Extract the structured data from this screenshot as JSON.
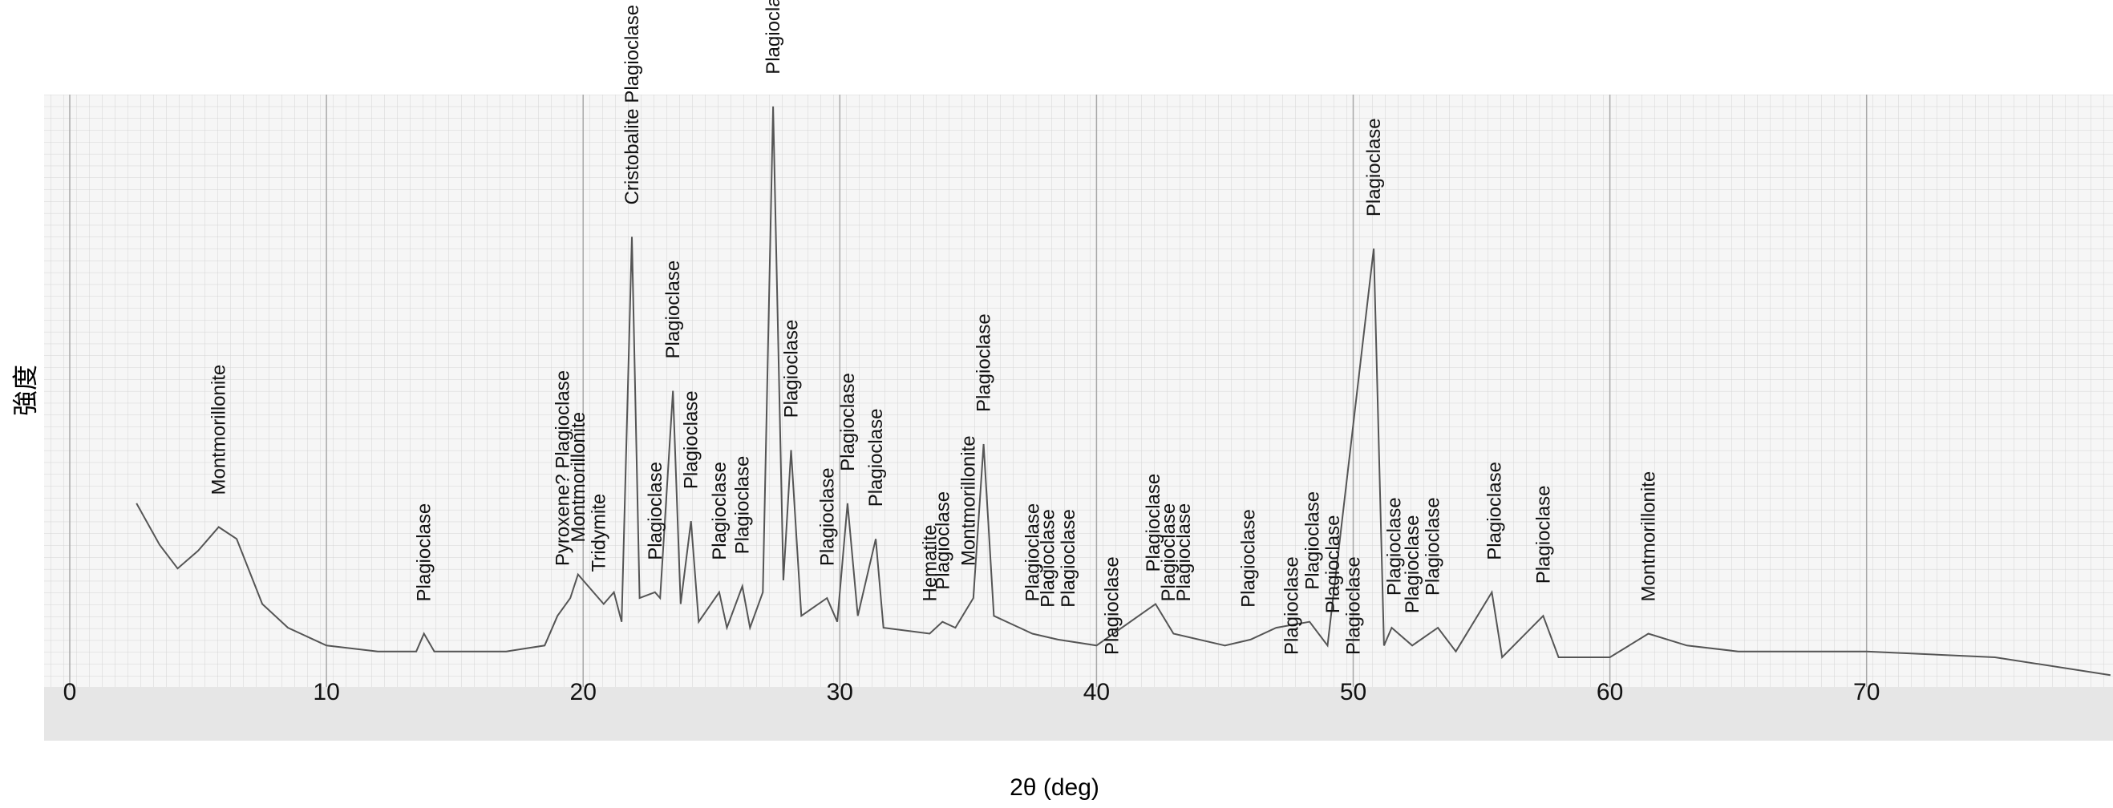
{
  "chart_data": {
    "type": "line",
    "xlabel": "2θ (deg)",
    "ylabel": "強度",
    "color": "#555555",
    "xlim": [
      -1,
      79.6
    ],
    "ylim": [
      0,
      100
    ],
    "xticks": [
      0,
      10,
      20,
      30,
      40,
      50,
      60,
      70
    ],
    "x": [
      2.6,
      3.5,
      4.2,
      5,
      5.8,
      6.5,
      7.5,
      8.5,
      10,
      12,
      13.5,
      13.8,
      14.2,
      17,
      18.5,
      19,
      19.5,
      19.8,
      20.2,
      20.8,
      21.2,
      21.5,
      21.9,
      22.2,
      22.8,
      23,
      23.5,
      23.8,
      24.2,
      24.5,
      25.3,
      25.6,
      26.2,
      26.5,
      27,
      27.4,
      27.8,
      28.1,
      28.5,
      29.5,
      29.9,
      30.3,
      30.7,
      31.4,
      31.7,
      33.5,
      34,
      34.5,
      35.2,
      35.6,
      36,
      37.5,
      38.5,
      40,
      42.3,
      43,
      45,
      46,
      47,
      48.3,
      49,
      50.8,
      51.2,
      51.5,
      52.3,
      53.3,
      54,
      55.4,
      55.8,
      57.4,
      58,
      60,
      61.5,
      63,
      65,
      70,
      75,
      79.5
    ],
    "values": [
      31,
      24,
      20,
      23,
      27,
      25,
      14,
      10,
      7,
      6,
      6,
      9,
      6,
      6,
      7,
      12,
      15,
      19,
      17,
      14,
      16,
      11,
      76,
      15,
      16,
      15,
      50,
      14,
      28,
      11,
      16,
      10,
      17,
      10,
      16,
      98,
      18,
      40,
      12,
      15,
      11,
      31,
      12,
      25,
      10,
      9,
      11,
      10,
      15,
      41,
      12,
      9,
      8,
      7,
      14,
      9,
      7,
      8,
      10,
      11,
      7,
      74,
      7,
      10,
      7,
      10,
      6,
      16,
      5,
      12,
      5,
      5,
      9,
      7,
      6,
      6,
      5,
      2
    ],
    "annotations": [
      {
        "text": "Montmorillonite",
        "x": 5.8
      },
      {
        "text": "Plagioclase",
        "x": 13.8
      },
      {
        "text": "Pyroxene? Plagioclase",
        "x": 19.2
      },
      {
        "text": "Montmorillonite",
        "x": 19.8
      },
      {
        "text": "Tridymite",
        "x": 20.6
      },
      {
        "text": "Cristobalite Plagioclase",
        "x": 21.9
      },
      {
        "text": "Plagioclase",
        "x": 22.8
      },
      {
        "text": "Plagioclase",
        "x": 23.5
      },
      {
        "text": "Plagioclase",
        "x": 24.2
      },
      {
        "text": "Plagioclase",
        "x": 25.3
      },
      {
        "text": "Plagioclase",
        "x": 26.2
      },
      {
        "text": "Plagioclase",
        "x": 27.4
      },
      {
        "text": "Plagioclase",
        "x": 28.1
      },
      {
        "text": "Plagioclase",
        "x": 29.5
      },
      {
        "text": "Plagioclase",
        "x": 30.3
      },
      {
        "text": "Plagioclase",
        "x": 31.4
      },
      {
        "text": "Hematite",
        "x": 33.5
      },
      {
        "text": "Plagioclase",
        "x": 34
      },
      {
        "text": "Montmorillonite",
        "x": 35
      },
      {
        "text": "Plagioclase",
        "x": 35.6
      },
      {
        "text": "Plagioclase",
        "x": 37.5
      },
      {
        "text": "Plagioclase",
        "x": 38.1
      },
      {
        "text": "Plagioclase",
        "x": 38.9
      },
      {
        "text": "Plagioclase",
        "x": 40.6
      },
      {
        "text": "Plagioclase",
        "x": 42.2
      },
      {
        "text": "Plagioclase",
        "x": 42.8
      },
      {
        "text": "Plagioclase",
        "x": 43.4
      },
      {
        "text": "Plagioclase",
        "x": 45.9
      },
      {
        "text": "Plagioclase",
        "x": 47.6
      },
      {
        "text": "Plagioclase",
        "x": 48.4
      },
      {
        "text": "Plagioclase",
        "x": 49.2
      },
      {
        "text": "Plagioclase",
        "x": 50
      },
      {
        "text": "Plagioclase",
        "x": 50.8
      },
      {
        "text": "Plagioclase",
        "x": 51.6
      },
      {
        "text": "Plagioclase",
        "x": 52.3
      },
      {
        "text": "Plagioclase",
        "x": 53.1
      },
      {
        "text": "Plagioclase",
        "x": 55.5
      },
      {
        "text": "Plagioclase",
        "x": 57.4
      },
      {
        "text": "Montmorillonite",
        "x": 61.5
      }
    ]
  }
}
